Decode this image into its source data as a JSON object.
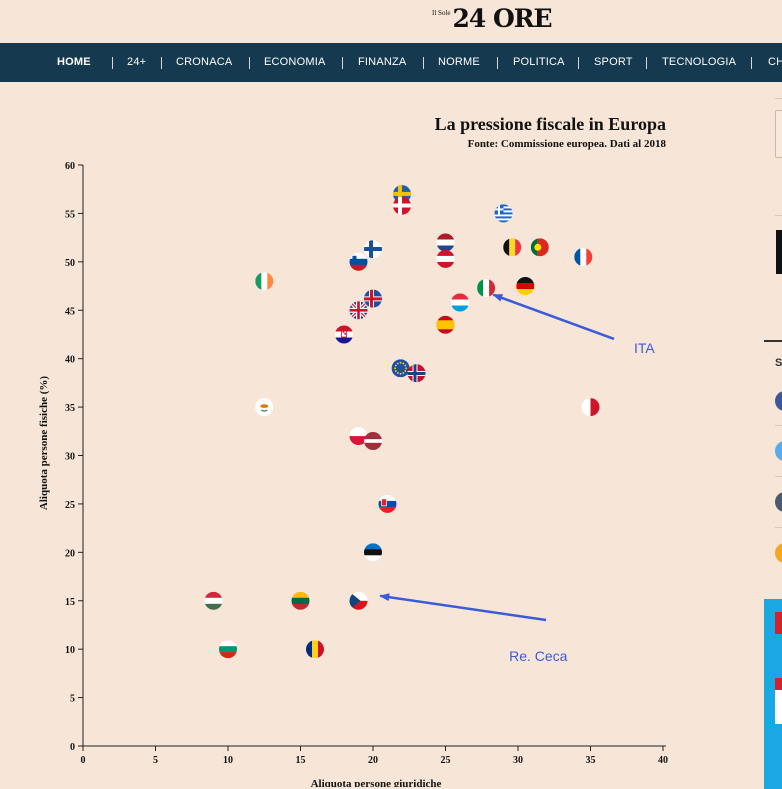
{
  "header": {
    "logo_small": "Il Sole",
    "logo_big": "24 ORE",
    "nav": [
      "HOME",
      "24+",
      "CRONACA",
      "ECONOMIA",
      "FINANZA",
      "NORME",
      "POLITICA",
      "SPORT",
      "TECNOLOGIA",
      "CH"
    ]
  },
  "chart_data": {
    "type": "scatter",
    "title": "La pressione fiscale in Europa",
    "subtitle": "Fonte: Commissione europea. Dati al 2018",
    "xlabel": "Aliquota persone giuridiche",
    "ylabel": "Aliquota persone fisiche (%)",
    "xlim": [
      0,
      40
    ],
    "ylim": [
      0,
      60
    ],
    "xticks": [
      0,
      5,
      10,
      15,
      20,
      25,
      30,
      35,
      40
    ],
    "yticks": [
      0,
      5,
      10,
      15,
      20,
      25,
      30,
      35,
      40,
      45,
      50,
      55,
      60
    ],
    "grid": false,
    "points": [
      {
        "flag": "sweden",
        "x": 22,
        "y": 57
      },
      {
        "flag": "denmark",
        "x": 22,
        "y": 55.8
      },
      {
        "flag": "greece",
        "x": 29,
        "y": 55
      },
      {
        "flag": "netherlands",
        "x": 25,
        "y": 52
      },
      {
        "flag": "belgium",
        "x": 29.6,
        "y": 51.5
      },
      {
        "flag": "portugal",
        "x": 31.5,
        "y": 51.5
      },
      {
        "flag": "finland",
        "x": 20,
        "y": 51.3
      },
      {
        "flag": "france",
        "x": 34.5,
        "y": 50.5
      },
      {
        "flag": "austria",
        "x": 25,
        "y": 50.3
      },
      {
        "flag": "slovenia",
        "x": 19,
        "y": 50
      },
      {
        "flag": "ireland",
        "x": 12.5,
        "y": 48
      },
      {
        "flag": "germany",
        "x": 30.5,
        "y": 47.5
      },
      {
        "flag": "italy",
        "x": 27.8,
        "y": 47.3
      },
      {
        "flag": "iceland",
        "x": 20,
        "y": 46.2
      },
      {
        "flag": "luxembourg",
        "x": 26,
        "y": 45.8
      },
      {
        "flag": "uk",
        "x": 19,
        "y": 45
      },
      {
        "flag": "spain",
        "x": 25,
        "y": 43.5
      },
      {
        "flag": "croatia",
        "x": 18,
        "y": 42.5
      },
      {
        "flag": "eu",
        "x": 21.9,
        "y": 39
      },
      {
        "flag": "norway",
        "x": 23,
        "y": 38.5
      },
      {
        "flag": "cyprus",
        "x": 12.5,
        "y": 35
      },
      {
        "flag": "malta",
        "x": 35,
        "y": 35
      },
      {
        "flag": "poland",
        "x": 19,
        "y": 32
      },
      {
        "flag": "latvia",
        "x": 20,
        "y": 31.5
      },
      {
        "flag": "slovakia",
        "x": 21,
        "y": 25
      },
      {
        "flag": "estonia",
        "x": 20,
        "y": 20
      },
      {
        "flag": "hungary",
        "x": 9,
        "y": 15
      },
      {
        "flag": "lithuania",
        "x": 15,
        "y": 15
      },
      {
        "flag": "czech",
        "x": 19,
        "y": 15
      },
      {
        "flag": "bulgaria",
        "x": 10,
        "y": 10
      },
      {
        "flag": "romania",
        "x": 16,
        "y": 10
      }
    ],
    "annotations": [
      {
        "label": "ITA",
        "x": 38,
        "y": 41,
        "arrow_to": [
          28.3,
          46.6
        ]
      },
      {
        "label": "Re. Ceca",
        "x": 31.8,
        "y": 12.7,
        "arrow_to": [
          20.5,
          15.5
        ]
      }
    ]
  },
  "colors": {
    "background": "#f7e6d7",
    "nav": "#15394f",
    "annotation": "#3b5bdb"
  }
}
